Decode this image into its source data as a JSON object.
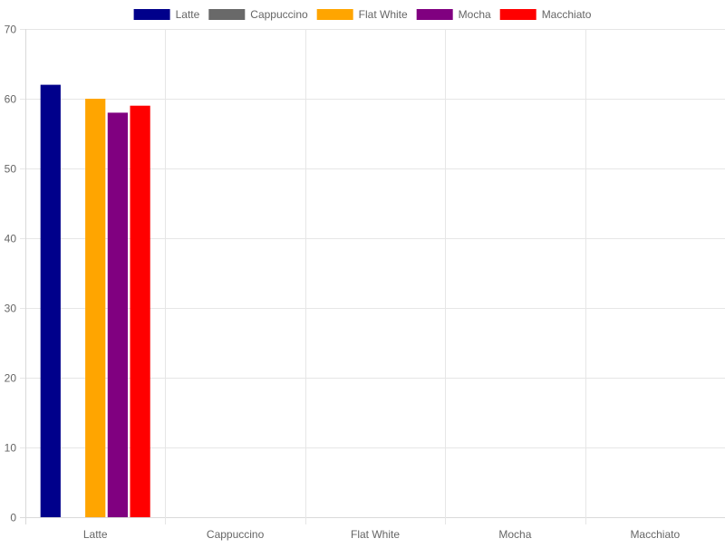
{
  "chart_data": {
    "type": "bar",
    "categories": [
      "Latte",
      "Cappuccino",
      "Flat White",
      "Mocha",
      "Macchiato"
    ],
    "series": [
      {
        "name": "Latte",
        "color": "#00008b",
        "values": [
          62,
          0,
          0,
          0,
          0
        ]
      },
      {
        "name": "Cappuccino",
        "color": "#696969",
        "values": [
          0,
          0,
          0,
          0,
          0
        ]
      },
      {
        "name": "Flat White",
        "color": "#ffa500",
        "values": [
          60,
          0,
          0,
          0,
          0
        ]
      },
      {
        "name": "Mocha",
        "color": "#800080",
        "values": [
          58,
          0,
          0,
          0,
          0
        ]
      },
      {
        "name": "Macchiato",
        "color": "#ff0000",
        "values": [
          59,
          0,
          0,
          0,
          0
        ]
      }
    ],
    "ylim": [
      0,
      70
    ],
    "yticks": [
      0,
      10,
      20,
      30,
      40,
      50,
      60,
      70
    ],
    "title": "",
    "xlabel": "",
    "ylabel": "",
    "grid": true,
    "legend_position": "top"
  },
  "colors": {
    "grid": "#e6e6e6",
    "axis": "#d9d9d9",
    "text": "#666666"
  }
}
